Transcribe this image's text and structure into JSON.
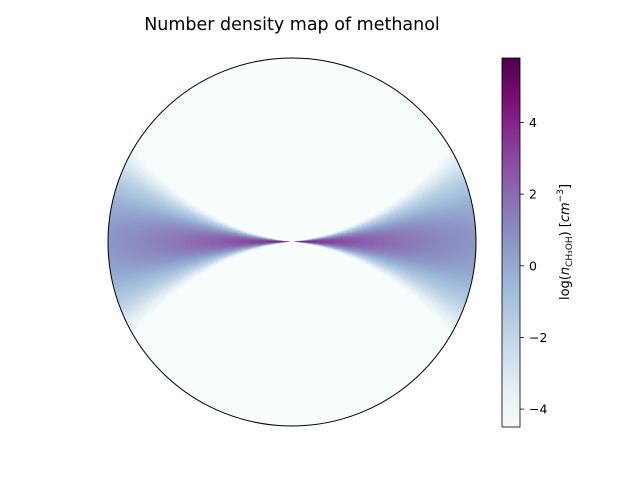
{
  "chart_data": {
    "type": "heatmap",
    "projection": "polar",
    "title": "Number density map of methanol",
    "colorbar": {
      "label_prefix": "log(",
      "label_n": "n",
      "label_species": "CH₃OH",
      "label_suffix": ") [",
      "label_unit": "cm",
      "label_unit_exp": "−3",
      "label_close": "]",
      "vmin": -4.5,
      "vmax": 5.8,
      "ticks": [
        -4,
        -2,
        0,
        2,
        4
      ],
      "tick_labels": [
        "−4",
        "−2",
        "0",
        "2",
        "4"
      ],
      "colormap": "BuPu",
      "colors": [
        "#f7fcfd",
        "#e0ecf4",
        "#bfd3e6",
        "#9ebcda",
        "#8c96c6",
        "#8c6bb1",
        "#88419d",
        "#810f7c",
        "#4d004b"
      ]
    },
    "field": {
      "description": "density highest on equatorial plane (theta = 90 deg) near center, falling off with height above the midplane",
      "peak_log_density": 5.8,
      "midplane_edge_log_density": 0.6,
      "background_log_density": -4.5,
      "polar_axis_gap_deg": 3.5
    },
    "grid": false,
    "legend": "colorbar-right"
  }
}
